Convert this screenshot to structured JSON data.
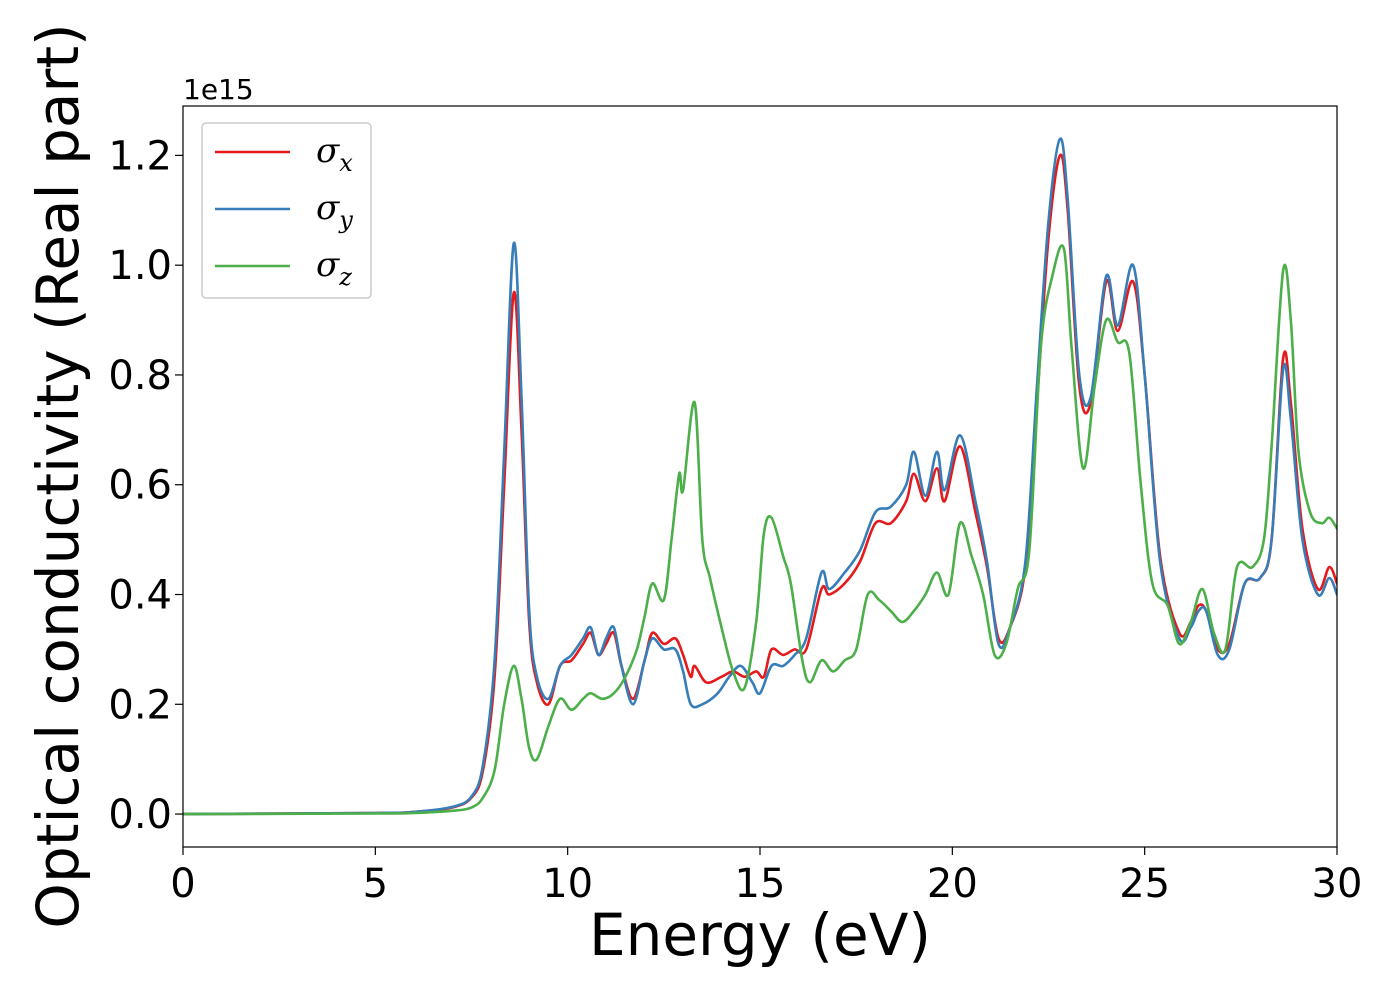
{
  "chart_data": {
    "type": "line",
    "title": "",
    "xlabel": "Energy (eV)",
    "ylabel": "Optical conductivity (Real part)",
    "y_offset_label": "1e15",
    "xlim": [
      0,
      30
    ],
    "ylim": [
      -0.06,
      1.29
    ],
    "x_ticks": [
      0,
      5,
      10,
      15,
      20,
      25,
      30
    ],
    "x_tick_labels": [
      "0",
      "5",
      "10",
      "15",
      "20",
      "25",
      "30"
    ],
    "y_ticks": [
      0.0,
      0.2,
      0.4,
      0.6,
      0.8,
      1.0,
      1.2
    ],
    "y_tick_labels": [
      "0.0",
      "0.2",
      "0.4",
      "0.6",
      "0.8",
      "1.0",
      "1.2"
    ],
    "grid": false,
    "legend_position": "top-left",
    "series": [
      {
        "name": "σx",
        "legend_main": "σ",
        "legend_sub": "x",
        "color": "#e41a1c",
        "points": [
          [
            0,
            0
          ],
          [
            5,
            0.002
          ],
          [
            6,
            0.004
          ],
          [
            7,
            0.012
          ],
          [
            7.5,
            0.03
          ],
          [
            7.8,
            0.08
          ],
          [
            8.1,
            0.25
          ],
          [
            8.35,
            0.6
          ],
          [
            8.6,
            0.95
          ],
          [
            8.8,
            0.7
          ],
          [
            9.0,
            0.35
          ],
          [
            9.2,
            0.24
          ],
          [
            9.5,
            0.2
          ],
          [
            9.8,
            0.27
          ],
          [
            10.1,
            0.28
          ],
          [
            10.4,
            0.31
          ],
          [
            10.6,
            0.33
          ],
          [
            10.8,
            0.29
          ],
          [
            11.0,
            0.31
          ],
          [
            11.2,
            0.33
          ],
          [
            11.4,
            0.27
          ],
          [
            11.7,
            0.21
          ],
          [
            12.0,
            0.28
          ],
          [
            12.2,
            0.33
          ],
          [
            12.5,
            0.31
          ],
          [
            12.8,
            0.32
          ],
          [
            13.0,
            0.29
          ],
          [
            13.2,
            0.25
          ],
          [
            13.3,
            0.27
          ],
          [
            13.6,
            0.24
          ],
          [
            14.0,
            0.25
          ],
          [
            14.3,
            0.26
          ],
          [
            14.6,
            0.25
          ],
          [
            14.9,
            0.26
          ],
          [
            15.1,
            0.25
          ],
          [
            15.3,
            0.3
          ],
          [
            15.6,
            0.29
          ],
          [
            15.9,
            0.3
          ],
          [
            16.2,
            0.3
          ],
          [
            16.6,
            0.41
          ],
          [
            16.8,
            0.4
          ],
          [
            17.2,
            0.42
          ],
          [
            17.6,
            0.46
          ],
          [
            18.0,
            0.53
          ],
          [
            18.4,
            0.53
          ],
          [
            18.8,
            0.57
          ],
          [
            19.0,
            0.62
          ],
          [
            19.3,
            0.57
          ],
          [
            19.6,
            0.63
          ],
          [
            19.8,
            0.57
          ],
          [
            20.2,
            0.67
          ],
          [
            20.6,
            0.55
          ],
          [
            20.9,
            0.45
          ],
          [
            21.2,
            0.32
          ],
          [
            21.5,
            0.34
          ],
          [
            21.9,
            0.45
          ],
          [
            22.2,
            0.75
          ],
          [
            22.5,
            1.05
          ],
          [
            22.8,
            1.2
          ],
          [
            23.0,
            1.1
          ],
          [
            23.3,
            0.78
          ],
          [
            23.6,
            0.75
          ],
          [
            24.0,
            0.97
          ],
          [
            24.3,
            0.88
          ],
          [
            24.7,
            0.97
          ],
          [
            25.0,
            0.8
          ],
          [
            25.4,
            0.47
          ],
          [
            25.9,
            0.33
          ],
          [
            26.2,
            0.35
          ],
          [
            26.4,
            0.38
          ],
          [
            26.6,
            0.37
          ],
          [
            26.9,
            0.3
          ],
          [
            27.2,
            0.31
          ],
          [
            27.6,
            0.42
          ],
          [
            28.0,
            0.43
          ],
          [
            28.3,
            0.5
          ],
          [
            28.6,
            0.83
          ],
          [
            28.8,
            0.75
          ],
          [
            29.1,
            0.52
          ],
          [
            29.5,
            0.41
          ],
          [
            29.8,
            0.45
          ],
          [
            30.0,
            0.42
          ]
        ]
      },
      {
        "name": "σy",
        "legend_main": "σ",
        "legend_sub": "y",
        "color": "#377eb8",
        "points": [
          [
            0,
            0
          ],
          [
            5,
            0.002
          ],
          [
            6,
            0.004
          ],
          [
            7,
            0.013
          ],
          [
            7.5,
            0.032
          ],
          [
            7.8,
            0.09
          ],
          [
            8.1,
            0.28
          ],
          [
            8.35,
            0.66
          ],
          [
            8.6,
            1.04
          ],
          [
            8.8,
            0.76
          ],
          [
            9.0,
            0.37
          ],
          [
            9.2,
            0.25
          ],
          [
            9.5,
            0.21
          ],
          [
            9.8,
            0.27
          ],
          [
            10.1,
            0.29
          ],
          [
            10.4,
            0.32
          ],
          [
            10.6,
            0.34
          ],
          [
            10.8,
            0.29
          ],
          [
            11.0,
            0.32
          ],
          [
            11.2,
            0.34
          ],
          [
            11.4,
            0.27
          ],
          [
            11.7,
            0.2
          ],
          [
            12.0,
            0.28
          ],
          [
            12.2,
            0.32
          ],
          [
            12.5,
            0.3
          ],
          [
            12.8,
            0.3
          ],
          [
            13.0,
            0.26
          ],
          [
            13.2,
            0.2
          ],
          [
            13.5,
            0.2
          ],
          [
            13.9,
            0.22
          ],
          [
            14.2,
            0.25
          ],
          [
            14.5,
            0.27
          ],
          [
            14.8,
            0.24
          ],
          [
            15.0,
            0.22
          ],
          [
            15.3,
            0.27
          ],
          [
            15.6,
            0.27
          ],
          [
            15.9,
            0.29
          ],
          [
            16.2,
            0.32
          ],
          [
            16.6,
            0.44
          ],
          [
            16.8,
            0.41
          ],
          [
            17.2,
            0.44
          ],
          [
            17.6,
            0.48
          ],
          [
            18.0,
            0.55
          ],
          [
            18.4,
            0.56
          ],
          [
            18.8,
            0.6
          ],
          [
            19.0,
            0.66
          ],
          [
            19.3,
            0.58
          ],
          [
            19.6,
            0.66
          ],
          [
            19.8,
            0.59
          ],
          [
            20.2,
            0.69
          ],
          [
            20.6,
            0.57
          ],
          [
            20.9,
            0.46
          ],
          [
            21.2,
            0.31
          ],
          [
            21.5,
            0.34
          ],
          [
            21.9,
            0.46
          ],
          [
            22.2,
            0.78
          ],
          [
            22.5,
            1.08
          ],
          [
            22.8,
            1.23
          ],
          [
            23.0,
            1.12
          ],
          [
            23.3,
            0.8
          ],
          [
            23.6,
            0.76
          ],
          [
            24.0,
            0.98
          ],
          [
            24.3,
            0.89
          ],
          [
            24.7,
            1.0
          ],
          [
            25.0,
            0.8
          ],
          [
            25.4,
            0.46
          ],
          [
            25.9,
            0.32
          ],
          [
            26.2,
            0.34
          ],
          [
            26.4,
            0.37
          ],
          [
            26.6,
            0.37
          ],
          [
            26.9,
            0.29
          ],
          [
            27.2,
            0.3
          ],
          [
            27.6,
            0.42
          ],
          [
            28.0,
            0.43
          ],
          [
            28.3,
            0.5
          ],
          [
            28.6,
            0.81
          ],
          [
            28.8,
            0.72
          ],
          [
            29.1,
            0.5
          ],
          [
            29.5,
            0.4
          ],
          [
            29.8,
            0.43
          ],
          [
            30.0,
            0.4
          ]
        ]
      },
      {
        "name": "σz",
        "legend_main": "σ",
        "legend_sub": "z",
        "color": "#4daf4a",
        "points": [
          [
            0,
            0
          ],
          [
            5,
            0.001
          ],
          [
            6,
            0.002
          ],
          [
            7,
            0.006
          ],
          [
            7.5,
            0.012
          ],
          [
            7.8,
            0.03
          ],
          [
            8.1,
            0.08
          ],
          [
            8.35,
            0.2
          ],
          [
            8.6,
            0.27
          ],
          [
            8.8,
            0.21
          ],
          [
            9.0,
            0.12
          ],
          [
            9.2,
            0.1
          ],
          [
            9.5,
            0.16
          ],
          [
            9.8,
            0.21
          ],
          [
            10.1,
            0.19
          ],
          [
            10.4,
            0.21
          ],
          [
            10.6,
            0.22
          ],
          [
            10.9,
            0.21
          ],
          [
            11.2,
            0.22
          ],
          [
            11.5,
            0.25
          ],
          [
            11.8,
            0.3
          ],
          [
            12.0,
            0.36
          ],
          [
            12.2,
            0.42
          ],
          [
            12.5,
            0.39
          ],
          [
            12.7,
            0.5
          ],
          [
            12.9,
            0.62
          ],
          [
            13.0,
            0.59
          ],
          [
            13.3,
            0.75
          ],
          [
            13.5,
            0.5
          ],
          [
            13.7,
            0.43
          ],
          [
            14.0,
            0.34
          ],
          [
            14.3,
            0.26
          ],
          [
            14.6,
            0.23
          ],
          [
            14.9,
            0.35
          ],
          [
            15.1,
            0.51
          ],
          [
            15.3,
            0.54
          ],
          [
            15.6,
            0.47
          ],
          [
            15.8,
            0.42
          ],
          [
            16.1,
            0.28
          ],
          [
            16.3,
            0.24
          ],
          [
            16.6,
            0.28
          ],
          [
            16.9,
            0.26
          ],
          [
            17.2,
            0.28
          ],
          [
            17.5,
            0.3
          ],
          [
            17.8,
            0.4
          ],
          [
            18.1,
            0.39
          ],
          [
            18.4,
            0.37
          ],
          [
            18.7,
            0.35
          ],
          [
            19.0,
            0.37
          ],
          [
            19.3,
            0.4
          ],
          [
            19.6,
            0.44
          ],
          [
            19.9,
            0.4
          ],
          [
            20.2,
            0.53
          ],
          [
            20.5,
            0.47
          ],
          [
            20.8,
            0.4
          ],
          [
            21.1,
            0.29
          ],
          [
            21.4,
            0.31
          ],
          [
            21.7,
            0.41
          ],
          [
            22.0,
            0.48
          ],
          [
            22.3,
            0.85
          ],
          [
            22.6,
            0.98
          ],
          [
            22.9,
            1.03
          ],
          [
            23.1,
            0.85
          ],
          [
            23.4,
            0.63
          ],
          [
            23.7,
            0.78
          ],
          [
            24.0,
            0.9
          ],
          [
            24.3,
            0.86
          ],
          [
            24.6,
            0.84
          ],
          [
            24.9,
            0.6
          ],
          [
            25.2,
            0.42
          ],
          [
            25.6,
            0.38
          ],
          [
            25.9,
            0.31
          ],
          [
            26.2,
            0.35
          ],
          [
            26.5,
            0.41
          ],
          [
            26.8,
            0.33
          ],
          [
            27.1,
            0.3
          ],
          [
            27.4,
            0.45
          ],
          [
            27.8,
            0.45
          ],
          [
            28.1,
            0.5
          ],
          [
            28.3,
            0.67
          ],
          [
            28.6,
            0.99
          ],
          [
            28.8,
            0.9
          ],
          [
            29.0,
            0.66
          ],
          [
            29.3,
            0.55
          ],
          [
            29.6,
            0.53
          ],
          [
            29.8,
            0.54
          ],
          [
            30.0,
            0.52
          ]
        ]
      }
    ]
  }
}
